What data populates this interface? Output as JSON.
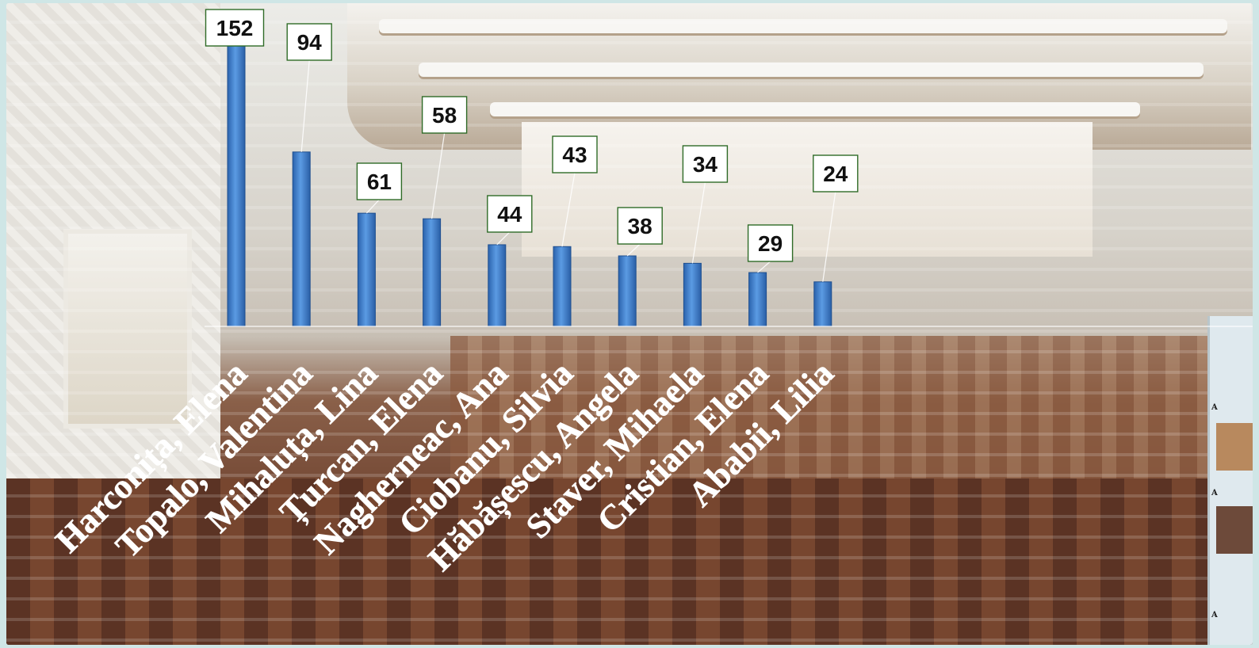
{
  "chart_data": {
    "type": "bar",
    "title": "",
    "xlabel": "",
    "ylabel": "",
    "categories": [
      "Harconița, Elena",
      "Topalo, Valentina",
      "Mihaluța, Lina",
      "Țurcan, Elena",
      "Nagherneac, Ana",
      "Ciobanu, Silvia",
      "Hăbășescu, Angela",
      "Staver, Mihaela",
      "Cristian, Elena",
      "Ababii, Lilia"
    ],
    "values": [
      152,
      94,
      61,
      58,
      44,
      43,
      38,
      34,
      29,
      24
    ],
    "ylim": [
      0,
      152
    ],
    "grid": false,
    "legend": "none",
    "bar_color": "#3f7fcf",
    "label_box_border": "#2f6b27"
  },
  "side_panel": {
    "marks": [
      "A",
      "A",
      "A"
    ]
  }
}
